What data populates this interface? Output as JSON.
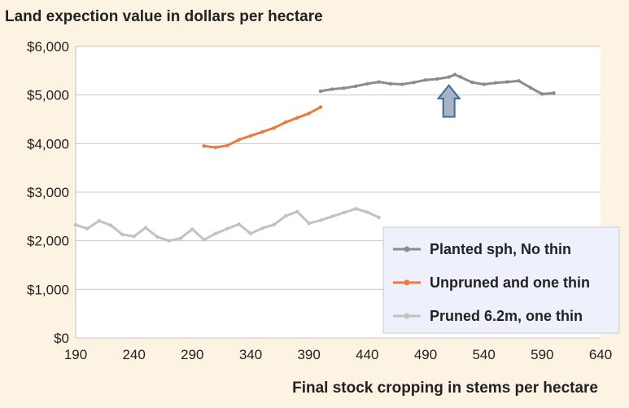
{
  "chart_data": {
    "type": "line",
    "title": "Land expection value in dollars per hectare",
    "xlabel": "Final stock cropping in stems per hectare",
    "ylabel": "",
    "xlim": [
      190,
      640
    ],
    "ylim": [
      0,
      6000
    ],
    "x_ticks": [
      190,
      240,
      290,
      340,
      390,
      440,
      490,
      540,
      590,
      640
    ],
    "x_tick_labels": [
      "190",
      "240",
      "290",
      "340",
      "390",
      "440",
      "490",
      "540",
      "590",
      "640"
    ],
    "y_ticks": [
      0,
      1000,
      2000,
      3000,
      4000,
      5000,
      6000
    ],
    "y_tick_labels": [
      "$0",
      "$1,000",
      "$2,000",
      "$3,000",
      "$4,000",
      "$5,000",
      "$6,000"
    ],
    "grid": "horizontal",
    "legend_position": "bottom-right",
    "annotation": {
      "type": "up-arrow",
      "x": 510,
      "y_tip": 5200,
      "y_base": 4550,
      "color": "#a8b4c4"
    },
    "series": [
      {
        "name": "Planted sph, No thin",
        "color": "#8c8c8c",
        "x": [
          400,
          410,
          420,
          430,
          440,
          450,
          460,
          470,
          480,
          490,
          500,
          510,
          515,
          520,
          530,
          540,
          550,
          560,
          570,
          580,
          590,
          600
        ],
        "y": [
          5080,
          5120,
          5140,
          5180,
          5230,
          5270,
          5230,
          5220,
          5260,
          5310,
          5330,
          5370,
          5420,
          5370,
          5260,
          5220,
          5250,
          5270,
          5290,
          5150,
          5020,
          5040
        ]
      },
      {
        "name": "Unpruned and one thin",
        "color": "#e87c3e",
        "x": [
          300,
          310,
          320,
          330,
          340,
          350,
          360,
          370,
          380,
          390,
          400
        ],
        "y": [
          3950,
          3920,
          3960,
          4080,
          4160,
          4240,
          4320,
          4440,
          4530,
          4620,
          4750
        ]
      },
      {
        "name": "Pruned 6.2m, one thin",
        "color": "#c2c2c2",
        "x": [
          190,
          200,
          210,
          220,
          230,
          240,
          250,
          260,
          270,
          280,
          290,
          300,
          310,
          320,
          330,
          340,
          350,
          360,
          370,
          380,
          390,
          400,
          410,
          420,
          430,
          440,
          450
        ],
        "y": [
          2330,
          2250,
          2410,
          2320,
          2130,
          2090,
          2270,
          2080,
          2000,
          2050,
          2240,
          2020,
          2150,
          2250,
          2340,
          2150,
          2260,
          2330,
          2510,
          2600,
          2360,
          2420,
          2500,
          2580,
          2660,
          2590,
          2480
        ]
      }
    ]
  }
}
